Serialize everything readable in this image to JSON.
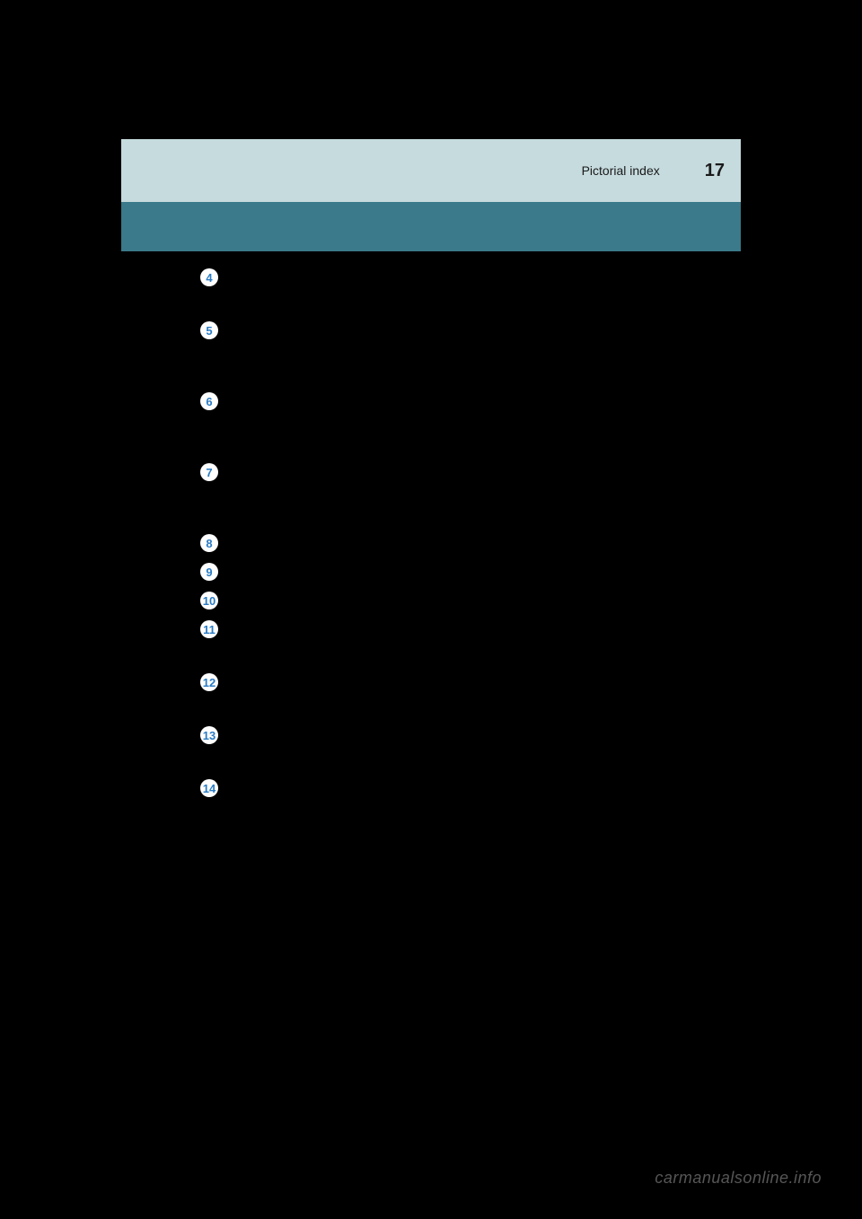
{
  "header": {
    "section_title": "Pictorial index",
    "page_number": "17"
  },
  "colors": {
    "page_bg": "#000000",
    "header_bg": "#c6dbde",
    "teal_bar_bg": "#3a7a8a",
    "circle_bg": "#ffffff",
    "circle_text": "#2b7cc4",
    "header_text": "#1a1a1a",
    "watermark_text": "#565656"
  },
  "index_markers": [
    {
      "num": "4",
      "spacing_after": "medium"
    },
    {
      "num": "5",
      "spacing_after": "large"
    },
    {
      "num": "6",
      "spacing_after": "large"
    },
    {
      "num": "7",
      "spacing_after": "large"
    },
    {
      "num": "8",
      "spacing_after": "tiny"
    },
    {
      "num": "9",
      "spacing_after": "tiny"
    },
    {
      "num": "10",
      "spacing_after": "tiny"
    },
    {
      "num": "11",
      "spacing_after": "medium"
    },
    {
      "num": "12",
      "spacing_after": "medium"
    },
    {
      "num": "13",
      "spacing_after": "medium"
    },
    {
      "num": "14",
      "spacing_after": "none"
    }
  ],
  "watermark": "carmanualsonline.info"
}
